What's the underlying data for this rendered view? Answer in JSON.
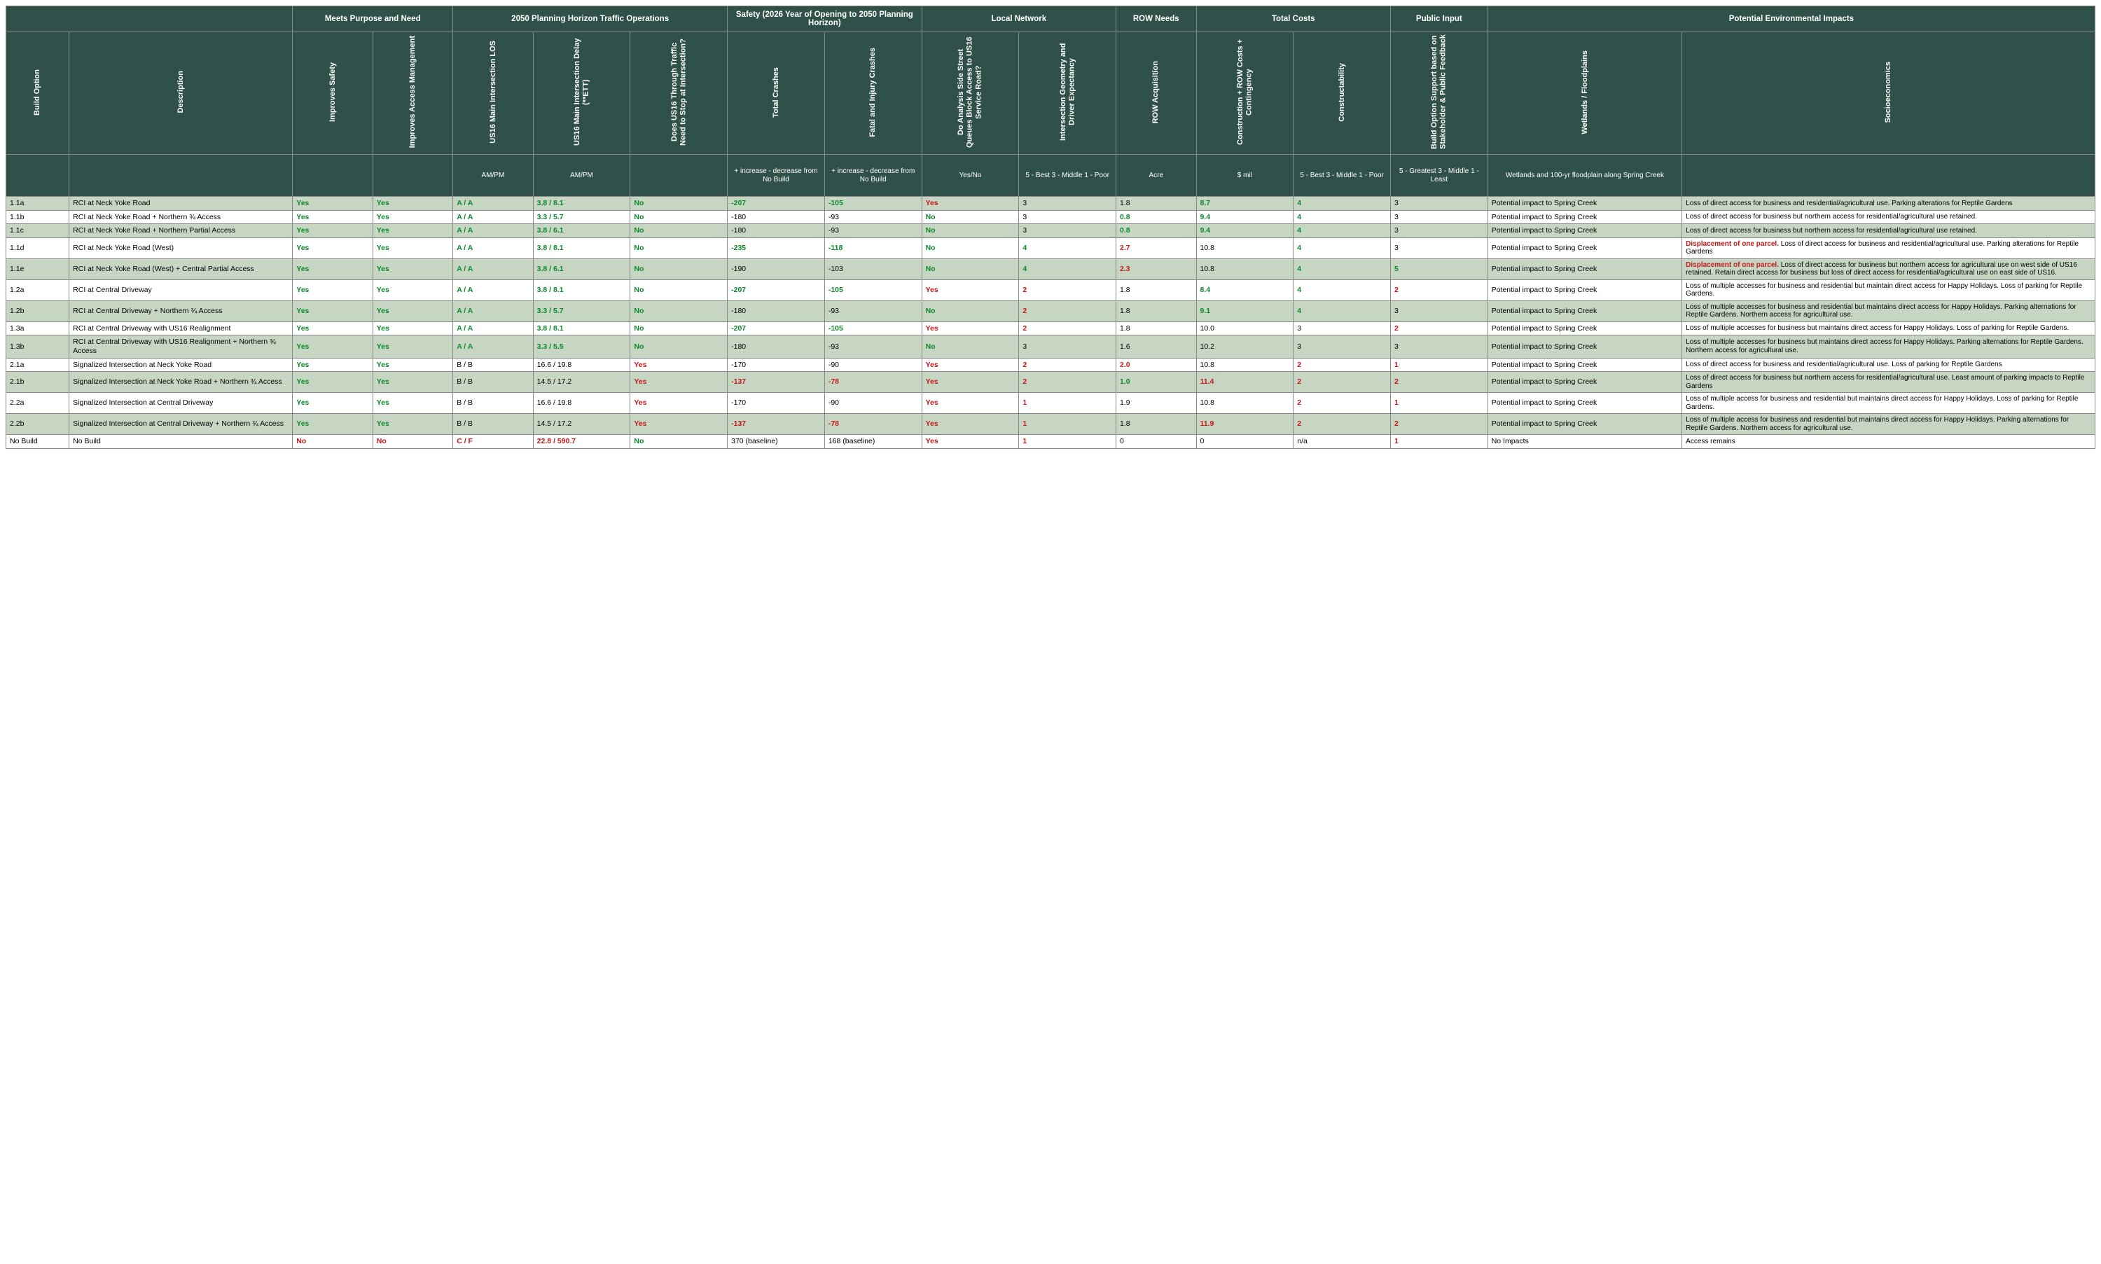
{
  "groupHeaders": {
    "purpose": "Meets Purpose and Need",
    "traffic": "2050 Planning Horizon Traffic Operations",
    "safety_pre": "Safety",
    "safety_post": " (2026 Year of Opening to 2050 Planning Horizon)",
    "local": "Local Network",
    "row": "ROW Needs",
    "costs": "Total Costs",
    "public": "Public Input",
    "env": "Potential Environmental Impacts"
  },
  "rotHeaders": {
    "build": "Build Option",
    "desc": "Description",
    "safety": "Improves Safety",
    "access": "Improves Access Management",
    "los": "US16 Main Intersection LOS",
    "delay": "US16 Main Intersection Delay (**ETT)",
    "stop": "Does US16 Through Traffic Need to Stop at Intersection?",
    "totcrash": "Total Crashes",
    "fatal": "Fatal and Injury Crashes",
    "queues": "Do Analysis Side Street Queues Block Access to US16 Service Road?",
    "geom": "Intersection Geometry and  Driver Expectancy",
    "rowacq": "ROW Acquisition",
    "concost": "Construction + ROW Costs + Contingency",
    "construct": "Constructability",
    "support": "Build Option Support based on Stakeholder & Public Feedback",
    "wet": "Wetlands / Floodplains",
    "socio": "Socioeconomics"
  },
  "units": {
    "ampm1": "AM/PM",
    "ampm2": "AM/PM",
    "crash": "+ increase\n- decrease from No Build",
    "yesno": "Yes/No",
    "scale531": "5 - Best\n3 - Middle\n1 - Poor",
    "acre": "Acre",
    "mil": "$ mil",
    "scale531b": "5 - Best\n3 - Middle\n1 - Poor",
    "scale531c": "5 - Greatest\n3 - Middle\n1 - Least",
    "wet": "Wetlands and 100-yr floodplain along Spring Creek"
  },
  "rows": [
    {
      "shade": true,
      "id": "1.1a",
      "desc": "RCI at Neck Yoke Road",
      "safety": [
        "Yes",
        "g"
      ],
      "access": [
        "Yes",
        "g"
      ],
      "los": [
        "A / A",
        "g"
      ],
      "delay": [
        "3.8 / 8.1",
        "g"
      ],
      "stop": [
        "No",
        "g"
      ],
      "tot": [
        "-207",
        "g"
      ],
      "fat": [
        "-105",
        "g"
      ],
      "que": [
        "Yes",
        "r"
      ],
      "geo": [
        "3",
        "k"
      ],
      "row": [
        "1.8",
        "k"
      ],
      "cost": [
        "8.7",
        "g"
      ],
      "con": [
        "4",
        "g"
      ],
      "sup": [
        "3",
        "k"
      ],
      "wet": "Potential impact to Spring Creek",
      "soc": "Loss of direct access for business and residential/agricultural use. Parking alterations for Reptile Gardens"
    },
    {
      "shade": false,
      "id": "1.1b",
      "desc": "RCI at Neck Yoke Road + Northern ¾ Access",
      "safety": [
        "Yes",
        "g"
      ],
      "access": [
        "Yes",
        "g"
      ],
      "los": [
        "A / A",
        "g"
      ],
      "delay": [
        "3.3 / 5.7",
        "g"
      ],
      "stop": [
        "No",
        "g"
      ],
      "tot": [
        "-180",
        "k"
      ],
      "fat": [
        "-93",
        "k"
      ],
      "que": [
        "No",
        "g"
      ],
      "geo": [
        "3",
        "k"
      ],
      "row": [
        "0.8",
        "g"
      ],
      "cost": [
        "9.4",
        "g"
      ],
      "con": [
        "4",
        "g"
      ],
      "sup": [
        "3",
        "k"
      ],
      "wet": "Potential impact to Spring Creek",
      "soc": "Loss of direct access for business but northern access for residential/agricultural use retained."
    },
    {
      "shade": true,
      "id": "1.1c",
      "desc": "RCI at Neck Yoke Road + Northern Partial Access",
      "safety": [
        "Yes",
        "g"
      ],
      "access": [
        "Yes",
        "g"
      ],
      "los": [
        "A / A",
        "g"
      ],
      "delay": [
        "3.8 / 6.1",
        "g"
      ],
      "stop": [
        "No",
        "g"
      ],
      "tot": [
        "-180",
        "k"
      ],
      "fat": [
        "-93",
        "k"
      ],
      "que": [
        "No",
        "g"
      ],
      "geo": [
        "3",
        "k"
      ],
      "row": [
        "0.8",
        "g"
      ],
      "cost": [
        "9.4",
        "g"
      ],
      "con": [
        "4",
        "g"
      ],
      "sup": [
        "3",
        "k"
      ],
      "wet": "Potential impact to Spring Creek",
      "soc": "Loss of direct access for business but northern access for residential/agricultural use retained."
    },
    {
      "shade": false,
      "id": "1.1d",
      "desc": "RCI at Neck Yoke Road (West)",
      "safety": [
        "Yes",
        "g"
      ],
      "access": [
        "Yes",
        "g"
      ],
      "los": [
        "A / A",
        "g"
      ],
      "delay": [
        "3.8 / 8.1",
        "g"
      ],
      "stop": [
        "No",
        "g"
      ],
      "tot": [
        "-235",
        "g"
      ],
      "fat": [
        "-118",
        "g"
      ],
      "que": [
        "No",
        "g"
      ],
      "geo": [
        "4",
        "g"
      ],
      "row": [
        "2.7",
        "r"
      ],
      "cost": [
        "10.8",
        "k"
      ],
      "con": [
        "4",
        "g"
      ],
      "sup": [
        "3",
        "k"
      ],
      "wet": "Potential impact to Spring Creek",
      "soc": "<span class='warn'>Displacement of one parcel.</span>  Loss of direct access for business and residential/agricultural use. Parking alterations for Reptile Gardens"
    },
    {
      "shade": true,
      "id": "1.1e",
      "desc": "RCI at Neck Yoke Road (West) + Central Partial Access",
      "safety": [
        "Yes",
        "g"
      ],
      "access": [
        "Yes",
        "g"
      ],
      "los": [
        "A / A",
        "g"
      ],
      "delay": [
        "3.8 / 6.1",
        "g"
      ],
      "stop": [
        "No",
        "g"
      ],
      "tot": [
        "-190",
        "k"
      ],
      "fat": [
        "-103",
        "k"
      ],
      "que": [
        "No",
        "g"
      ],
      "geo": [
        "4",
        "g"
      ],
      "row": [
        "2.3",
        "r"
      ],
      "cost": [
        "10.8",
        "k"
      ],
      "con": [
        "4",
        "g"
      ],
      "sup": [
        "5",
        "g"
      ],
      "wet": "Potential impact to Spring Creek",
      "soc": "<span class='warn'>Displacement of one parcel.</span>  Loss of direct access for business but northern access for agricultural use on west side of US16 retained. Retain direct access for business but loss of direct access for residential/agricultural use on east side of US16."
    },
    {
      "shade": false,
      "id": "1.2a",
      "desc": "RCI at Central Driveway",
      "safety": [
        "Yes",
        "g"
      ],
      "access": [
        "Yes",
        "g"
      ],
      "los": [
        "A / A",
        "g"
      ],
      "delay": [
        "3.8 / 8.1",
        "g"
      ],
      "stop": [
        "No",
        "g"
      ],
      "tot": [
        "-207",
        "g"
      ],
      "fat": [
        "-105",
        "g"
      ],
      "que": [
        "Yes",
        "r"
      ],
      "geo": [
        "2",
        "r"
      ],
      "row": [
        "1.8",
        "k"
      ],
      "cost": [
        "8.4",
        "g"
      ],
      "con": [
        "4",
        "g"
      ],
      "sup": [
        "2",
        "r"
      ],
      "wet": "Potential impact to Spring Creek",
      "soc": "Loss of multiple accesses for business and residential but maintain direct access for Happy Holidays. Loss of parking for Reptile Gardens."
    },
    {
      "shade": true,
      "id": "1.2b",
      "desc": "RCI at Central Driveway + Northern ¾ Access",
      "safety": [
        "Yes",
        "g"
      ],
      "access": [
        "Yes",
        "g"
      ],
      "los": [
        "A / A",
        "g"
      ],
      "delay": [
        "3.3 / 5.7",
        "g"
      ],
      "stop": [
        "No",
        "g"
      ],
      "tot": [
        "-180",
        "k"
      ],
      "fat": [
        "-93",
        "k"
      ],
      "que": [
        "No",
        "g"
      ],
      "geo": [
        "2",
        "r"
      ],
      "row": [
        "1.8",
        "k"
      ],
      "cost": [
        "9.1",
        "g"
      ],
      "con": [
        "4",
        "g"
      ],
      "sup": [
        "3",
        "k"
      ],
      "wet": "Potential impact to Spring Creek",
      "soc": "Loss of multiple accesses for business and residential but maintains direct access for Happy Holidays. Parking alternations for Reptile Gardens. Northern access for agricultural use."
    },
    {
      "shade": false,
      "id": "1.3a",
      "desc": "RCI at Central Driveway with US16 Realignment",
      "safety": [
        "Yes",
        "g"
      ],
      "access": [
        "Yes",
        "g"
      ],
      "los": [
        "A / A",
        "g"
      ],
      "delay": [
        "3.8 / 8.1",
        "g"
      ],
      "stop": [
        "No",
        "g"
      ],
      "tot": [
        "-207",
        "g"
      ],
      "fat": [
        "-105",
        "g"
      ],
      "que": [
        "Yes",
        "r"
      ],
      "geo": [
        "2",
        "r"
      ],
      "row": [
        "1.8",
        "k"
      ],
      "cost": [
        "10.0",
        "k"
      ],
      "con": [
        "3",
        "k"
      ],
      "sup": [
        "2",
        "r"
      ],
      "wet": "Potential impact to Spring Creek",
      "soc": "Loss of multiple accesses for business but maintains direct access for Happy Holidays. Loss of parking for Reptile Gardens."
    },
    {
      "shade": true,
      "id": "1.3b",
      "desc": "RCI at Central Driveway with US16 Realignment + Northern ¾ Access",
      "safety": [
        "Yes",
        "g"
      ],
      "access": [
        "Yes",
        "g"
      ],
      "los": [
        "A / A",
        "g"
      ],
      "delay": [
        "3.3 / 5.5",
        "g"
      ],
      "stop": [
        "No",
        "g"
      ],
      "tot": [
        "-180",
        "k"
      ],
      "fat": [
        "-93",
        "k"
      ],
      "que": [
        "No",
        "g"
      ],
      "geo": [
        "3",
        "k"
      ],
      "row": [
        "1.6",
        "k"
      ],
      "cost": [
        "10.2",
        "k"
      ],
      "con": [
        "3",
        "k"
      ],
      "sup": [
        "3",
        "k"
      ],
      "wet": "Potential impact to Spring Creek",
      "soc": "Loss of multiple accesses for business but maintains direct access for Happy Holidays. Parking alternations for Reptile Gardens. Northern access for agricultural use."
    },
    {
      "shade": false,
      "id": "2.1a",
      "desc": "Signalized Intersection at Neck Yoke Road",
      "safety": [
        "Yes",
        "g"
      ],
      "access": [
        "Yes",
        "g"
      ],
      "los": [
        "B / B",
        "k"
      ],
      "delay": [
        "16.6 / 19.8",
        "k"
      ],
      "stop": [
        "Yes",
        "r"
      ],
      "tot": [
        "-170",
        "k"
      ],
      "fat": [
        "-90",
        "k"
      ],
      "que": [
        "Yes",
        "r"
      ],
      "geo": [
        "2",
        "r"
      ],
      "row": [
        "2.0",
        "r"
      ],
      "cost": [
        "10.8",
        "k"
      ],
      "con": [
        "2",
        "r"
      ],
      "sup": [
        "1",
        "r"
      ],
      "wet": "Potential impact to Spring Creek",
      "soc": "Loss of direct access for business and residential/agricultural use. Loss of parking for Reptile Gardens"
    },
    {
      "shade": true,
      "id": "2.1b",
      "desc": "Signalized Intersection at Neck Yoke Road + Northern ¾ Access",
      "safety": [
        "Yes",
        "g"
      ],
      "access": [
        "Yes",
        "g"
      ],
      "los": [
        "B / B",
        "k"
      ],
      "delay": [
        "14.5 / 17.2",
        "k"
      ],
      "stop": [
        "Yes",
        "r"
      ],
      "tot": [
        "-137",
        "r"
      ],
      "fat": [
        "-78",
        "r"
      ],
      "que": [
        "Yes",
        "r"
      ],
      "geo": [
        "2",
        "r"
      ],
      "row": [
        "1.0",
        "g"
      ],
      "cost": [
        "11.4",
        "r"
      ],
      "con": [
        "2",
        "r"
      ],
      "sup": [
        "2",
        "r"
      ],
      "wet": "Potential impact to Spring Creek",
      "soc": "Loss of direct access for business but northern access for residential/agricultural use. Least amount of parking impacts to Reptile Gardens"
    },
    {
      "shade": false,
      "id": "2.2a",
      "desc": "Signalized Intersection at Central Driveway",
      "safety": [
        "Yes",
        "g"
      ],
      "access": [
        "Yes",
        "g"
      ],
      "los": [
        "B / B",
        "k"
      ],
      "delay": [
        "16.6 / 19.8",
        "k"
      ],
      "stop": [
        "Yes",
        "r"
      ],
      "tot": [
        "-170",
        "k"
      ],
      "fat": [
        "-90",
        "k"
      ],
      "que": [
        "Yes",
        "r"
      ],
      "geo": [
        "1",
        "r"
      ],
      "row": [
        "1.9",
        "k"
      ],
      "cost": [
        "10.8",
        "k"
      ],
      "con": [
        "2",
        "r"
      ],
      "sup": [
        "1",
        "r"
      ],
      "wet": "Potential impact to Spring Creek",
      "soc": "Loss of multiple access for business and residential but maintains direct access for Happy Holidays. Loss of parking for Reptile Gardens."
    },
    {
      "shade": true,
      "id": "2.2b",
      "desc": "Signalized Intersection at Central Driveway + Northern ¾ Access",
      "safety": [
        "Yes",
        "g"
      ],
      "access": [
        "Yes",
        "g"
      ],
      "los": [
        "B / B",
        "k"
      ],
      "delay": [
        "14.5 / 17.2",
        "k"
      ],
      "stop": [
        "Yes",
        "r"
      ],
      "tot": [
        "-137",
        "r"
      ],
      "fat": [
        "-78",
        "r"
      ],
      "que": [
        "Yes",
        "r"
      ],
      "geo": [
        "1",
        "r"
      ],
      "row": [
        "1.8",
        "k"
      ],
      "cost": [
        "11.9",
        "r"
      ],
      "con": [
        "2",
        "r"
      ],
      "sup": [
        "2",
        "r"
      ],
      "wet": "Potential impact to Spring Creek",
      "soc": "Loss of multiple access for business and residential but maintains direct access for Happy Holidays. Parking alternations for Reptile Gardens. Northern access for agricultural use."
    },
    {
      "shade": false,
      "id": "No Build",
      "desc": "No Build",
      "safety": [
        "No",
        "r"
      ],
      "access": [
        "No",
        "r"
      ],
      "los": [
        "C / F",
        "r"
      ],
      "delay": [
        "22.8 / 590.7",
        "r"
      ],
      "stop": [
        "No",
        "g"
      ],
      "tot": [
        "370 (baseline)",
        "k"
      ],
      "fat": [
        "168 (baseline)",
        "k"
      ],
      "que": [
        "Yes",
        "r"
      ],
      "geo": [
        "1",
        "r"
      ],
      "row": [
        "0",
        "k"
      ],
      "cost": [
        "0",
        "k"
      ],
      "con": [
        "n/a",
        "k"
      ],
      "sup": [
        "1",
        "r"
      ],
      "wet": "No Impacts",
      "soc": " Access remains"
    }
  ]
}
